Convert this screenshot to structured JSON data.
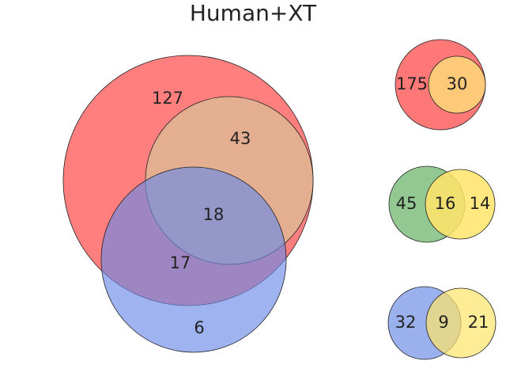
{
  "title": "Human+XT",
  "chart_data": [
    {
      "type": "venn",
      "region_values": [
        127,
        43,
        18,
        17,
        6
      ],
      "colors": {
        "set_a": "#ff5a5a",
        "set_b": "#d9a066",
        "set_c": "#6a8be8"
      }
    },
    {
      "type": "venn",
      "region_values": [
        175,
        30
      ],
      "colors": {
        "outer": "#ff5a5a",
        "inner": "#ffc97a"
      }
    },
    {
      "type": "venn",
      "region_values": [
        45,
        16,
        14
      ],
      "colors": {
        "left": "#6fb56f",
        "overlap": "#e6f57a",
        "right": "#ffe46a"
      }
    },
    {
      "type": "venn",
      "region_values": [
        32,
        9,
        21
      ],
      "colors": {
        "left": "#8aa3ea",
        "overlap": "#efeccc",
        "right": "#ffe46a"
      }
    }
  ]
}
